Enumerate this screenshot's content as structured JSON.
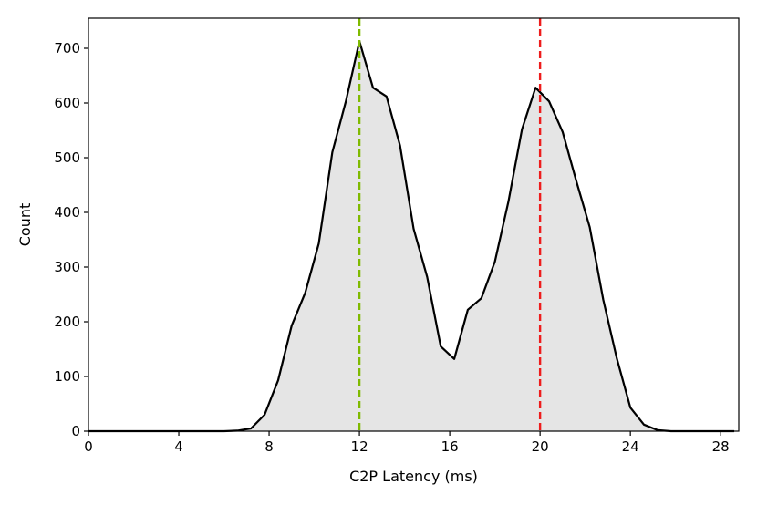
{
  "chart_data": {
    "type": "area",
    "xlabel": "C2P Latency (ms)",
    "ylabel": "Count",
    "xlim": [
      0,
      28.8
    ],
    "ylim": [
      0,
      755
    ],
    "xticks": [
      0,
      4,
      8,
      12,
      16,
      20,
      24,
      28
    ],
    "yticks": [
      0,
      100,
      200,
      300,
      400,
      500,
      600,
      700
    ],
    "grid": false,
    "series": [
      {
        "x": [
          0,
          1,
          2,
          3,
          4,
          5,
          6,
          6.6,
          7.2,
          7.8,
          8.4,
          9.0,
          9.6,
          10.2,
          10.8,
          11.4,
          12.0,
          12.6,
          13.2,
          13.8,
          14.4,
          15.0,
          15.6,
          16.2,
          16.8,
          17.4,
          18.0,
          18.6,
          19.2,
          19.8,
          20.4,
          21.0,
          21.6,
          22.2,
          22.8,
          23.4,
          24.0,
          24.6,
          25.2,
          25.8,
          26.4,
          27.0,
          28.6
        ],
        "y": [
          0,
          0,
          0,
          0,
          0,
          0,
          0,
          1,
          5,
          30,
          93,
          193,
          253,
          343,
          510,
          603,
          713,
          628,
          612,
          522,
          370,
          282,
          155,
          132,
          222,
          243,
          310,
          420,
          552,
          628,
          603,
          547,
          458,
          373,
          240,
          133,
          43,
          12,
          2,
          0,
          0,
          0,
          0
        ]
      }
    ],
    "fill_color": "#e5e5e5",
    "line_color": "#000000",
    "reference_lines": [
      {
        "x": 12,
        "color": "#7fba00"
      },
      {
        "x": 20,
        "color": "#ee1c1c"
      }
    ]
  }
}
